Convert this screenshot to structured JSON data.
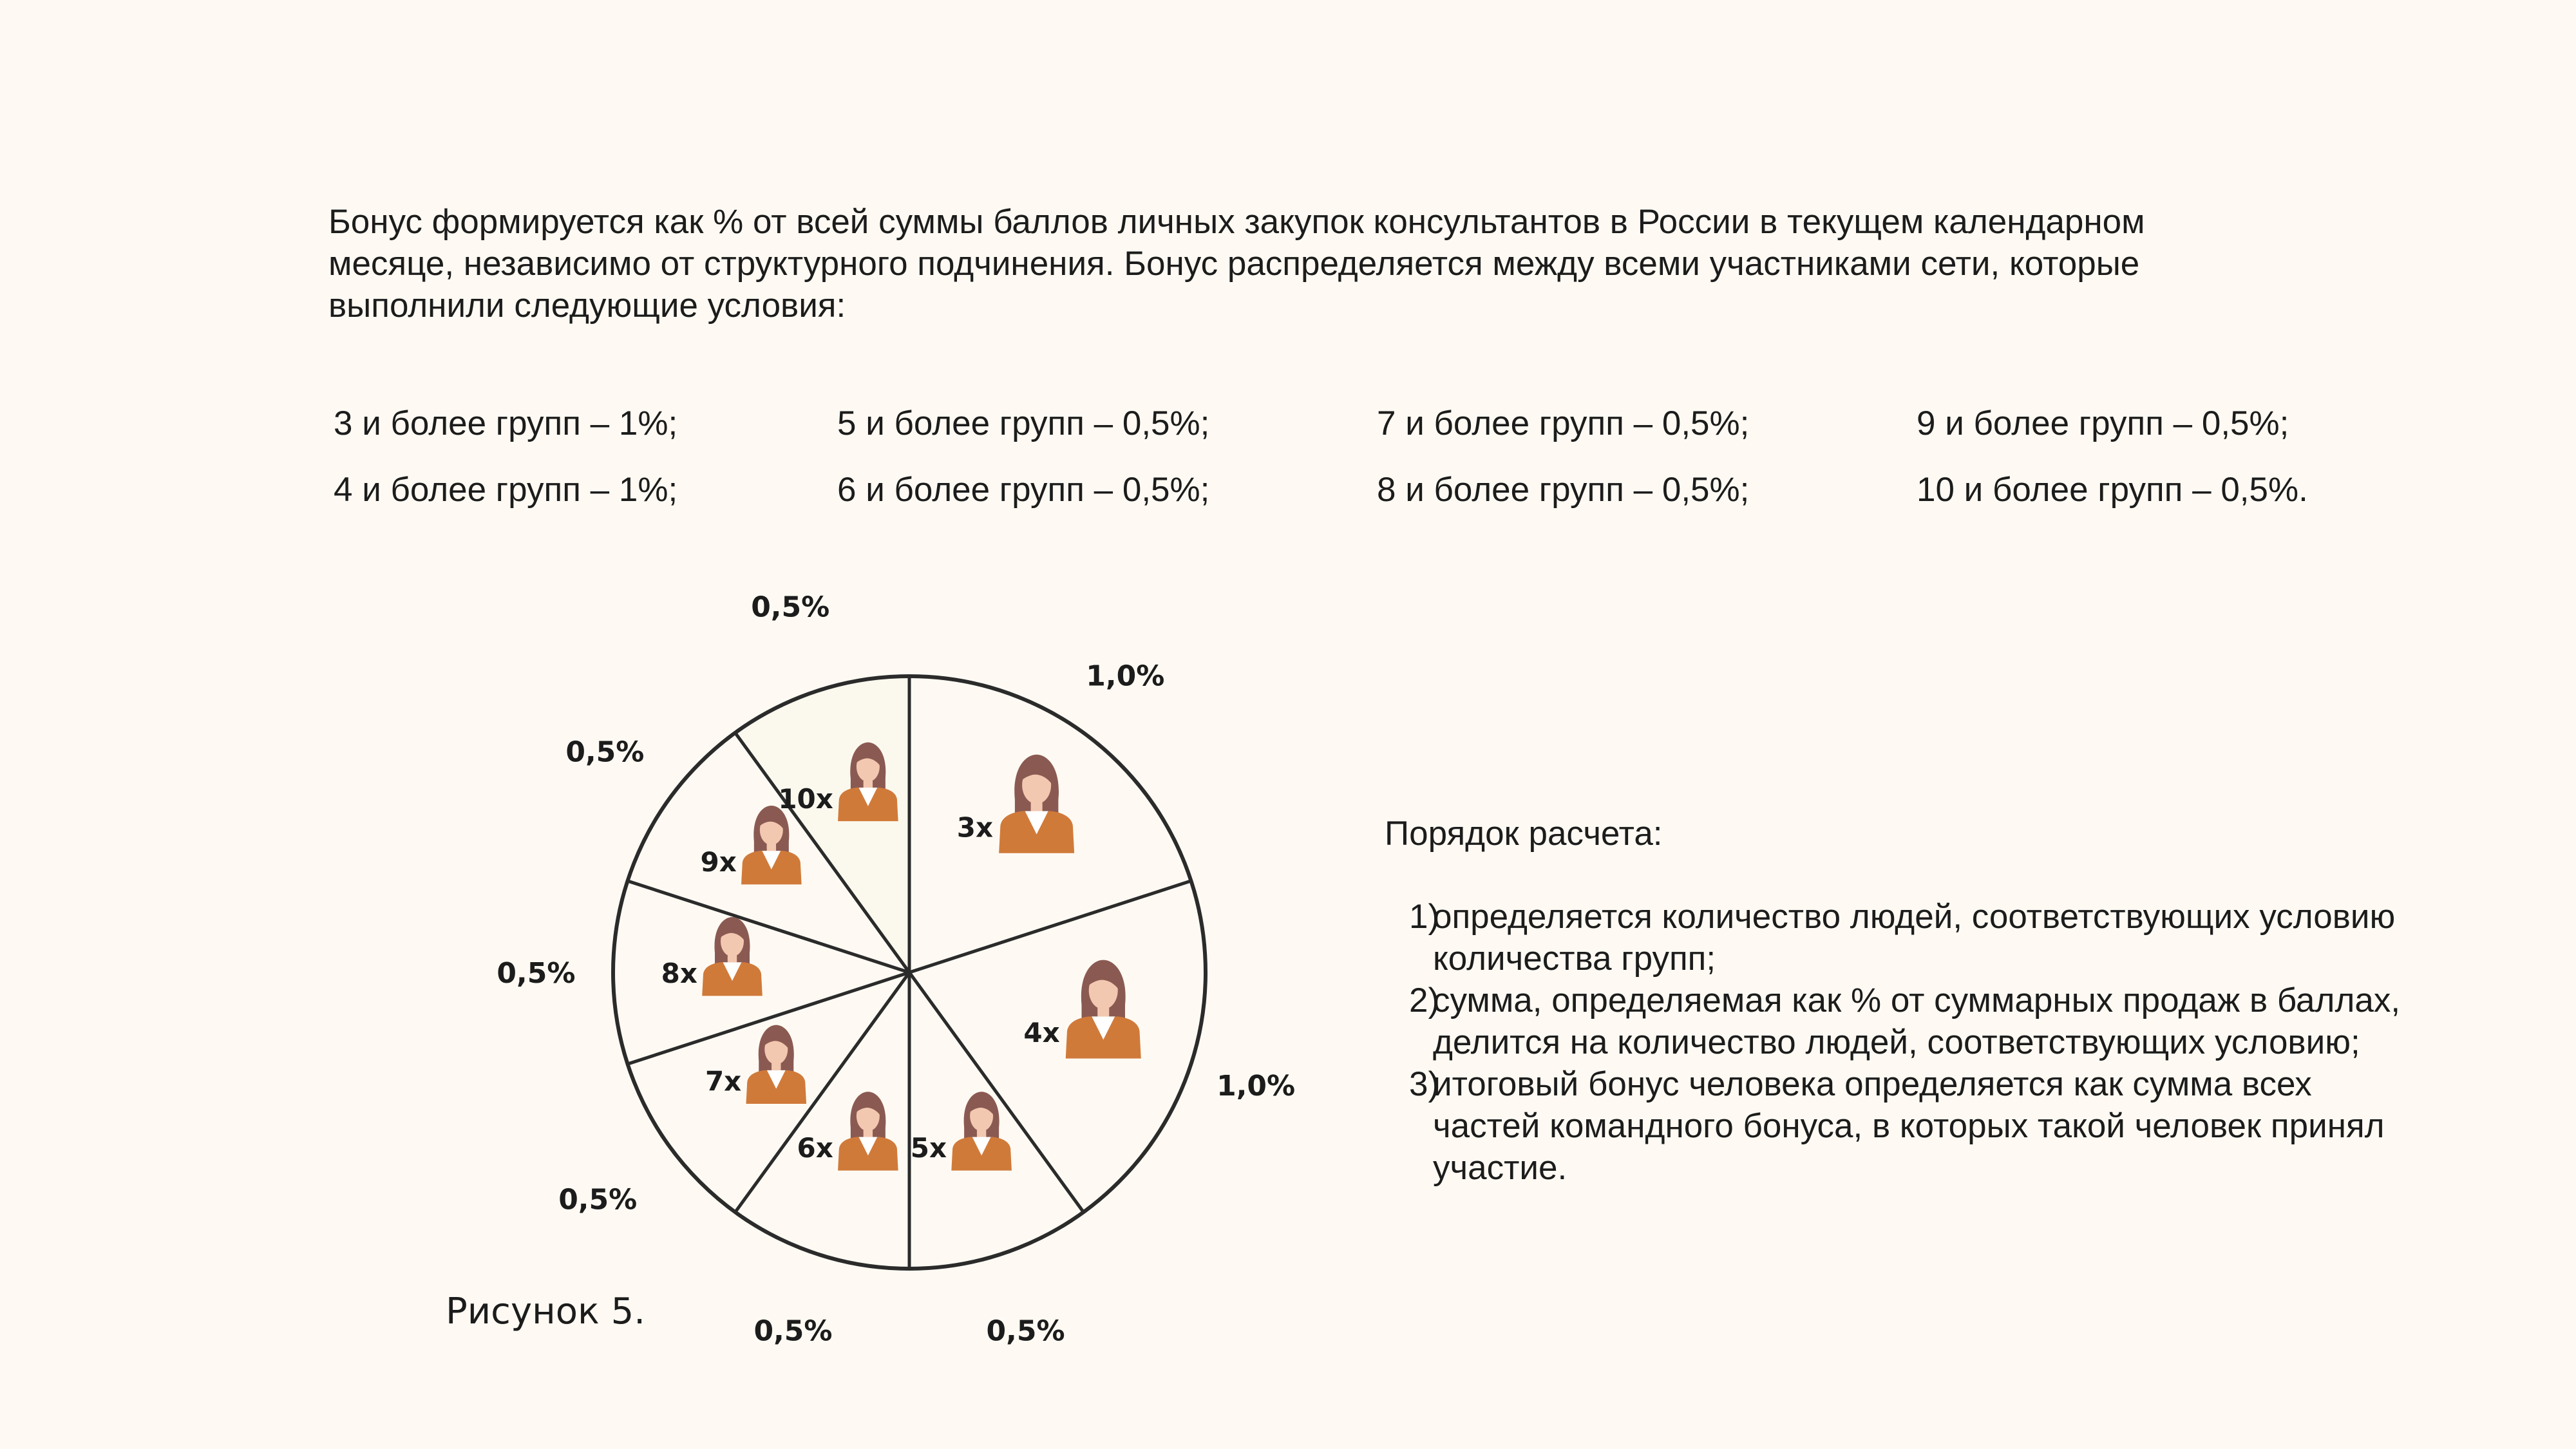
{
  "intro": {
    "text": "Бонус формируется как % от всей суммы баллов личных закупок консультантов в России в текущем календарном месяце, независимо от структурного подчинения. Бонус распределяется между всеми участниками сети, которые выполнили следующие условия:"
  },
  "rates": [
    {
      "label": "3 и более групп – 1%;"
    },
    {
      "label": "4 и более групп – 1%;"
    },
    {
      "label": "5 и более групп – 0,5%;"
    },
    {
      "label": "6 и более групп – 0,5%;"
    },
    {
      "label": "7 и более групп – 0,5%;"
    },
    {
      "label": "8 и более групп – 0,5%;"
    },
    {
      "label": "9 и более групп – 0,5%;"
    },
    {
      "label": "10 и более групп – 0,5%."
    }
  ],
  "calculation": {
    "title": "Порядок расчета:",
    "steps": [
      {
        "num": "1)",
        "text": "определяется количество людей, соответствующих условию количества групп;"
      },
      {
        "num": "2)",
        "text": "сумма, определяемая как % от суммарных продаж в баллах, делится на количество людей, соответствующих условию;"
      },
      {
        "num": "3)",
        "text": "итоговый бонус человека определяется как сумма всех частей командного бонуса, в которых такой человек принял участие."
      }
    ]
  },
  "chart_data": {
    "type": "pie",
    "slices": [
      {
        "count": "3x",
        "percent_label": "1,0%",
        "value": 1.0
      },
      {
        "count": "4x",
        "percent_label": "1,0%",
        "value": 1.0
      },
      {
        "count": "5x",
        "percent_label": "0,5%",
        "value": 0.5
      },
      {
        "count": "6x",
        "percent_label": "0,5%",
        "value": 0.5
      },
      {
        "count": "7x",
        "percent_label": "0,5%",
        "value": 0.5
      },
      {
        "count": "8x",
        "percent_label": "0,5%",
        "value": 0.5
      },
      {
        "count": "9x",
        "percent_label": "0,5%",
        "value": 0.5
      },
      {
        "count": "10x",
        "percent_label": "0,5%",
        "value": 0.5
      }
    ]
  },
  "caption": "Рисунок 5.",
  "colors": {
    "background": "#fefaf3",
    "slice_fill": "#fefaf3",
    "highlight_fill": "#fbf9ee",
    "stroke": "#2b2b2b",
    "jacket": "#d07a3a",
    "hair": "#8a5a52",
    "skin": "#f3c8b0"
  },
  "icons": {
    "person": "woman-avatar-icon"
  }
}
